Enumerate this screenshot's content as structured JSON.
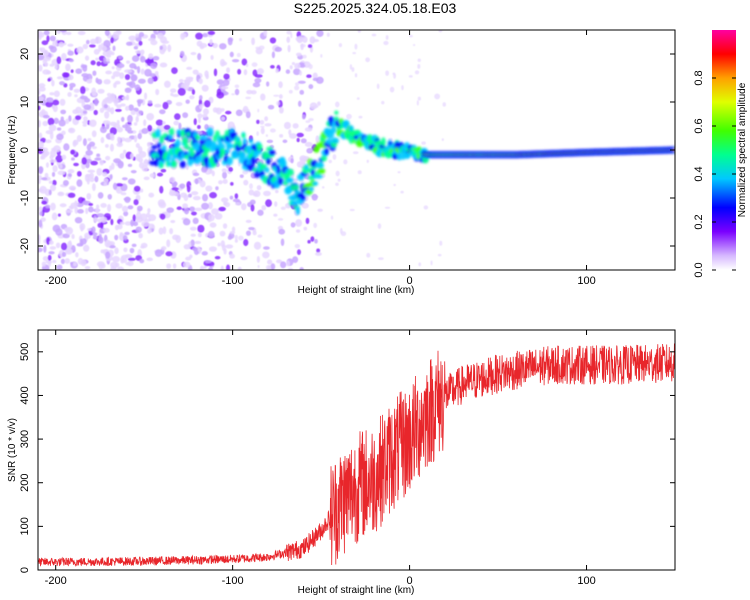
{
  "title": "S225.2025.324.05.18.E03",
  "chart_data": [
    {
      "type": "heatmap",
      "xlabel": "Height of straight line (km)",
      "ylabel": "Frequency (Hz)",
      "xlim": [
        -210,
        150
      ],
      "ylim": [
        -25,
        25
      ],
      "xticks": [
        -200,
        -100,
        0,
        100
      ],
      "xtick_labels": [
        "-200",
        "-100",
        "0",
        "100"
      ],
      "yticks": [
        -20,
        -10,
        0,
        10,
        20
      ],
      "ytick_labels": [
        "-20",
        "-10",
        "0",
        "10",
        "20"
      ],
      "colorbar": {
        "label": "Normalized spectral amplitude",
        "range": [
          0,
          1
        ],
        "ticks": [
          0.0,
          0.2,
          0.4,
          0.6,
          0.8
        ],
        "tick_labels": [
          "0.0",
          "0.2",
          "0.4",
          "0.6",
          "0.8"
        ]
      },
      "ridge_frequency": [
        [
          -145,
          0
        ],
        [
          -130,
          0.5
        ],
        [
          -110,
          0.5
        ],
        [
          -95,
          0
        ],
        [
          -80,
          -3
        ],
        [
          -70,
          -6
        ],
        [
          -63,
          -10
        ],
        [
          -58,
          -6
        ],
        [
          -52,
          -3
        ],
        [
          -45,
          3
        ],
        [
          -40,
          5
        ],
        [
          -30,
          3
        ],
        [
          -20,
          1
        ],
        [
          -10,
          0
        ],
        [
          0,
          0
        ],
        [
          10,
          -1
        ],
        [
          20,
          -1
        ],
        [
          60,
          -1
        ],
        [
          100,
          -0.5
        ],
        [
          150,
          0
        ]
      ]
    },
    {
      "type": "line",
      "xlabel": "Height of straight line (km)",
      "ylabel": "SNR (10 * v/v)",
      "xlim": [
        -210,
        150
      ],
      "ylim": [
        0,
        550
      ],
      "xticks": [
        -200,
        -100,
        0,
        100
      ],
      "xtick_labels": [
        "-200",
        "-100",
        "0",
        "100"
      ],
      "yticks": [
        0,
        100,
        200,
        300,
        400,
        500
      ],
      "ytick_labels": [
        "0",
        "100",
        "200",
        "300",
        "400",
        "500"
      ],
      "color": "#e8262b",
      "trend": {
        "x": [
          -210,
          -150,
          -100,
          -80,
          -60,
          -50,
          -40,
          -30,
          -20,
          -10,
          0,
          10,
          20,
          30,
          50,
          80,
          100,
          120,
          150
        ],
        "y": [
          18,
          20,
          25,
          30,
          50,
          90,
          150,
          190,
          210,
          260,
          300,
          360,
          400,
          425,
          450,
          470,
          470,
          470,
          475
        ]
      }
    }
  ]
}
